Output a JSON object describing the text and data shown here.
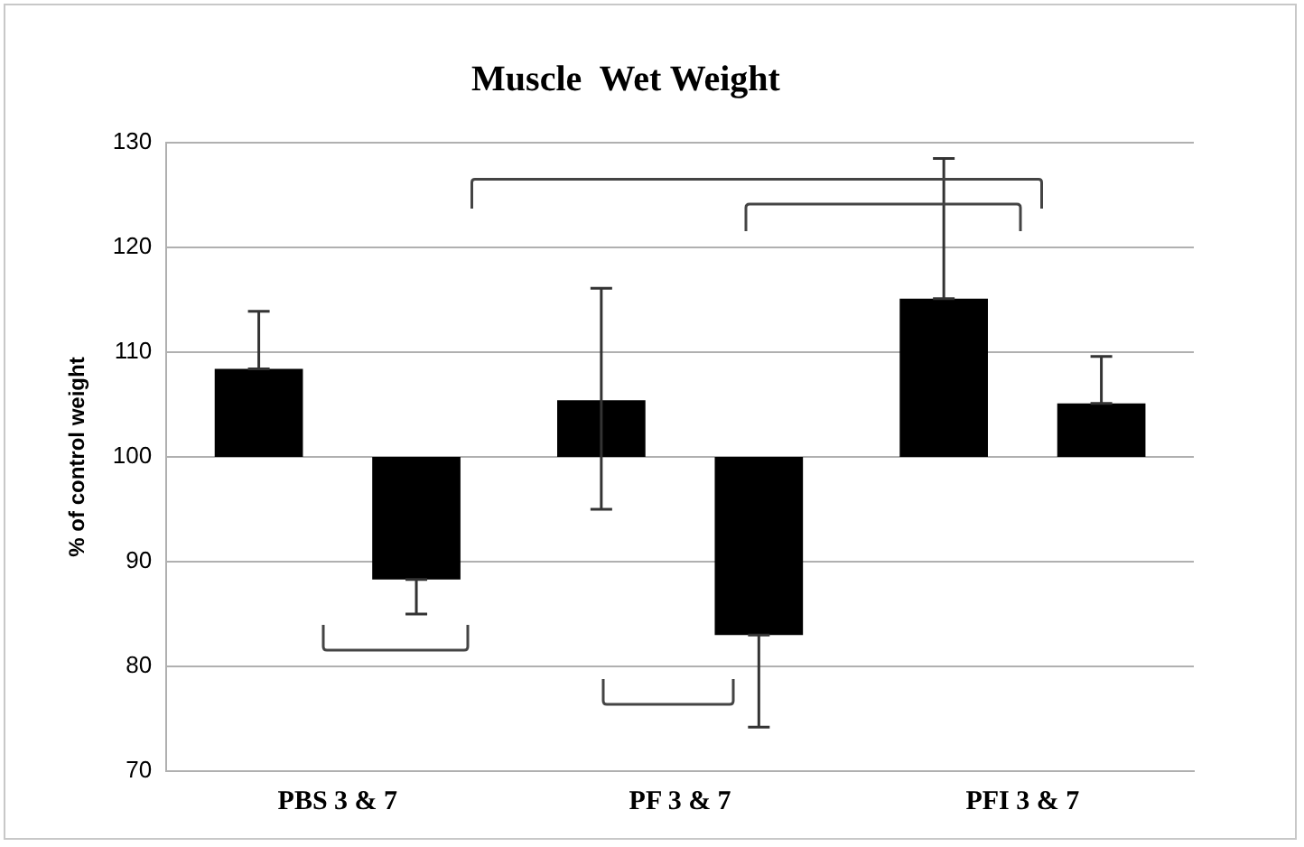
{
  "chart_data": {
    "type": "bar",
    "title": "Muscle  Wet Weight",
    "ylabel": "% of control weight",
    "categories": [
      "PBS 3 & 7",
      "PF 3 & 7",
      "PFI 3 & 7"
    ],
    "series": [
      {
        "color": "#000000",
        "base": [
          100,
          100,
          100
        ],
        "values": [
          8.4,
          5.4,
          15.1
        ],
        "errors": [
          [
            108.4,
            113.9
          ],
          [
            95.0,
            116.1
          ],
          [
            115.1,
            128.5
          ]
        ]
      },
      {
        "color": "#000000",
        "base": [
          100,
          100,
          100
        ],
        "values": [
          -11.7,
          -17.0,
          5.1
        ],
        "errors": [
          [
            85.0,
            88.3
          ],
          [
            74.2,
            83.0
          ],
          [
            105.1,
            109.6
          ]
        ]
      }
    ],
    "ylim": [
      70,
      130
    ],
    "yticks": [
      70,
      80,
      90,
      100,
      110,
      120,
      130
    ],
    "grid": "y",
    "legend": false
  }
}
